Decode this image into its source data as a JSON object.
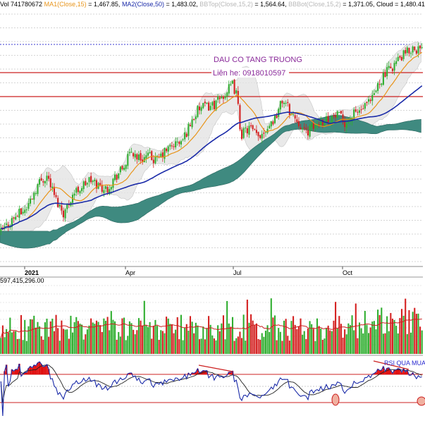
{
  "legend": {
    "vol": "Vol 741780672",
    "ma1_label": "MA1(Close,15)",
    "ma1_value": "= 1,467.85,",
    "ma2_label": "MA2(Close,50)",
    "ma2_value": "= 1,483.02,",
    "bbtop_label": "BBTop(Close,15,2)",
    "bbtop_value": "= 1,564.64,",
    "bbbot_label": "BBBot(Close,15,2)",
    "bbbot_value": "= 1,371.05,",
    "cloud_label": "Cloud",
    "cloud_value": "= 1,480.41"
  },
  "volume_panel": {
    "label": "597,415,296.00"
  },
  "annotations": {
    "title": "DAU CO TANG TRUONG",
    "contact": "Liên he: 0918010597",
    "rsi_note": "RSI QUA MUA"
  },
  "colors": {
    "up": "#2fae2f",
    "down": "#d42020",
    "ma1": "#e8941a",
    "ma2": "#1a2aa8",
    "cloud": "#3f8a80",
    "band": "#cfcfcf",
    "hline": "#cc2020",
    "rsi_line": "#1a2aa8"
  },
  "chart_data": {
    "type": "candlestick",
    "x_tick_labels": [
      "2021",
      "Apr",
      "Jul",
      "Oct"
    ],
    "series": [
      {
        "name": "MA1(Close,15)",
        "last": 1467.85
      },
      {
        "name": "MA2(Close,50)",
        "last": 1483.02
      },
      {
        "name": "BBTop(Close,15,2)",
        "last": 1564.64
      },
      {
        "name": "BBBot(Close,15,2)",
        "last": 1371.05
      },
      {
        "name": "Cloud",
        "last": 1480.41
      }
    ],
    "price_path": [
      [
        0,
        1080
      ],
      [
        0.03,
        1110
      ],
      [
        0.06,
        1130
      ],
      [
        0.09,
        1185
      ],
      [
        0.11,
        1200
      ],
      [
        0.13,
        1150
      ],
      [
        0.15,
        1120
      ],
      [
        0.17,
        1160
      ],
      [
        0.19,
        1175
      ],
      [
        0.21,
        1190
      ],
      [
        0.23,
        1180
      ],
      [
        0.25,
        1170
      ],
      [
        0.27,
        1195
      ],
      [
        0.29,
        1215
      ],
      [
        0.31,
        1250
      ],
      [
        0.33,
        1235
      ],
      [
        0.35,
        1240
      ],
      [
        0.37,
        1230
      ],
      [
        0.39,
        1250
      ],
      [
        0.41,
        1265
      ],
      [
        0.43,
        1270
      ],
      [
        0.45,
        1310
      ],
      [
        0.47,
        1340
      ],
      [
        0.49,
        1345
      ],
      [
        0.51,
        1350
      ],
      [
        0.53,
        1370
      ],
      [
        0.55,
        1390
      ],
      [
        0.56,
        1370
      ],
      [
        0.57,
        1285
      ],
      [
        0.59,
        1300
      ],
      [
        0.61,
        1280
      ],
      [
        0.63,
        1300
      ],
      [
        0.65,
        1320
      ],
      [
        0.67,
        1360
      ],
      [
        0.69,
        1330
      ],
      [
        0.71,
        1310
      ],
      [
        0.72,
        1290
      ],
      [
        0.74,
        1300
      ],
      [
        0.76,
        1315
      ],
      [
        0.78,
        1320
      ],
      [
        0.8,
        1325
      ],
      [
        0.82,
        1310
      ],
      [
        0.84,
        1330
      ],
      [
        0.86,
        1340
      ],
      [
        0.88,
        1355
      ],
      [
        0.9,
        1400
      ],
      [
        0.92,
        1420
      ],
      [
        0.94,
        1440
      ],
      [
        0.96,
        1455
      ],
      [
        0.98,
        1470
      ],
      [
        1.0,
        1462
      ]
    ],
    "volume_label": "597,415,296.00",
    "resistance_levels": [
      1468,
      1420
    ],
    "rsi_levels": [
      70,
      30
    ]
  }
}
